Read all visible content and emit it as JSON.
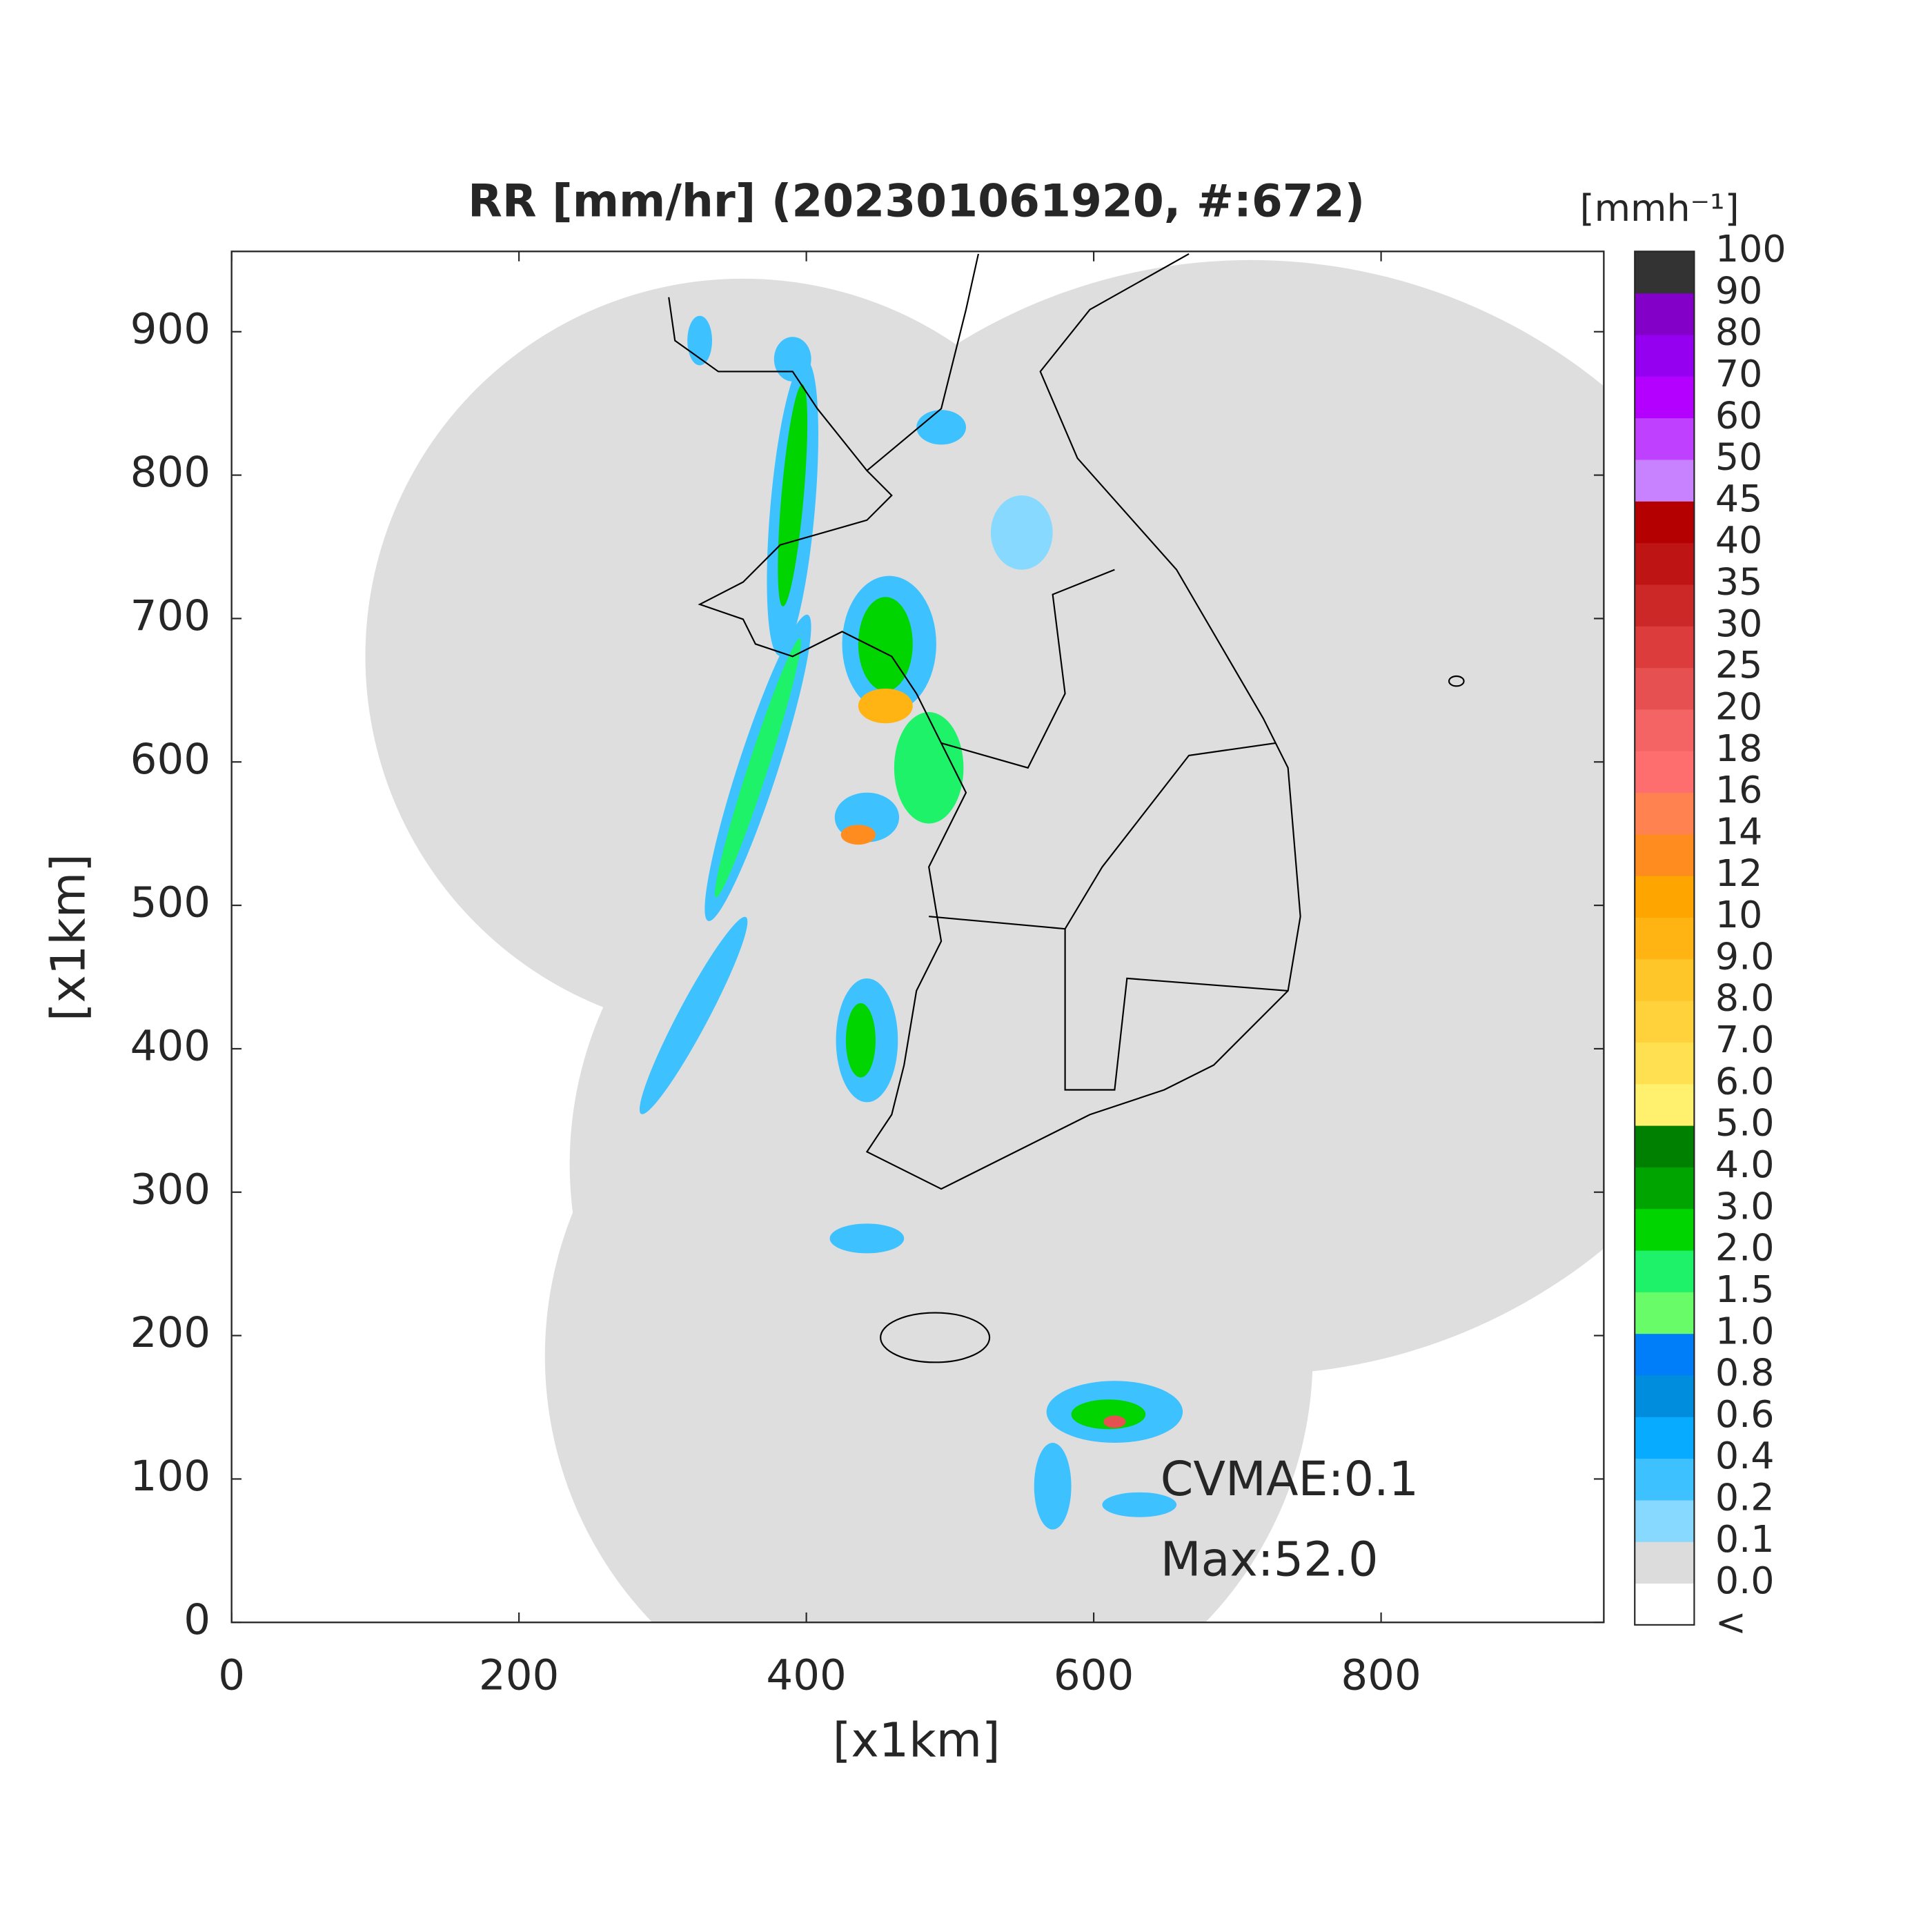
{
  "chart_data": {
    "type": "radar-map",
    "title": "RR [mm/hr] (202301061920, #:672)",
    "x_label": "[x1km]",
    "y_label": "[x1km]",
    "xlim": [
      0,
      955
    ],
    "ylim": [
      0,
      956
    ],
    "xticks": [
      0,
      200,
      400,
      600,
      800
    ],
    "yticks": [
      0,
      100,
      200,
      300,
      400,
      500,
      600,
      700,
      800,
      900
    ],
    "annotations": [
      "CVMAE:0.1",
      "Max:52.0"
    ],
    "colorbar": {
      "title": "[mmh⁻¹]",
      "under_label": "<",
      "ticks": [
        {
          "value": 0,
          "label": "0.0"
        },
        0.1,
        0.2,
        0.4,
        0.6,
        0.8,
        {
          "value": 1,
          "label": "1.0"
        },
        1.5,
        {
          "value": 2,
          "label": "2.0"
        },
        {
          "value": 3,
          "label": "3.0"
        },
        {
          "value": 4,
          "label": "4.0"
        },
        {
          "value": 5,
          "label": "5.0"
        },
        {
          "value": 6,
          "label": "6.0"
        },
        {
          "value": 7,
          "label": "7.0"
        },
        {
          "value": 8,
          "label": "8.0"
        },
        {
          "value": 9,
          "label": "9.0"
        },
        10,
        12,
        14,
        16,
        18,
        20,
        25,
        30,
        35,
        40,
        45,
        50,
        60,
        70,
        80,
        90,
        100
      ],
      "colors": [
        "#ffffff",
        "#dcdcdc",
        "#87d9ff",
        "#3ec1ff",
        "#07abff",
        "#008dde",
        "#007ef9",
        "#69fc69",
        "#1ef269",
        "#00d500",
        "#00a400",
        "#008000",
        "#fff06e",
        "#ffe050",
        "#ffd23c",
        "#ffc62a",
        "#ffb414",
        "#ffa500",
        "#ff8c1e",
        "#ff8250",
        "#ff6e6e",
        "#f56464",
        "#e65050",
        "#dc3c3c",
        "#cd2828",
        "#be1414",
        "#b40000",
        "#c882ff",
        "#c040ff",
        "#b400ff",
        "#9600f0",
        "#8200c8",
        "#333333"
      ]
    }
  }
}
